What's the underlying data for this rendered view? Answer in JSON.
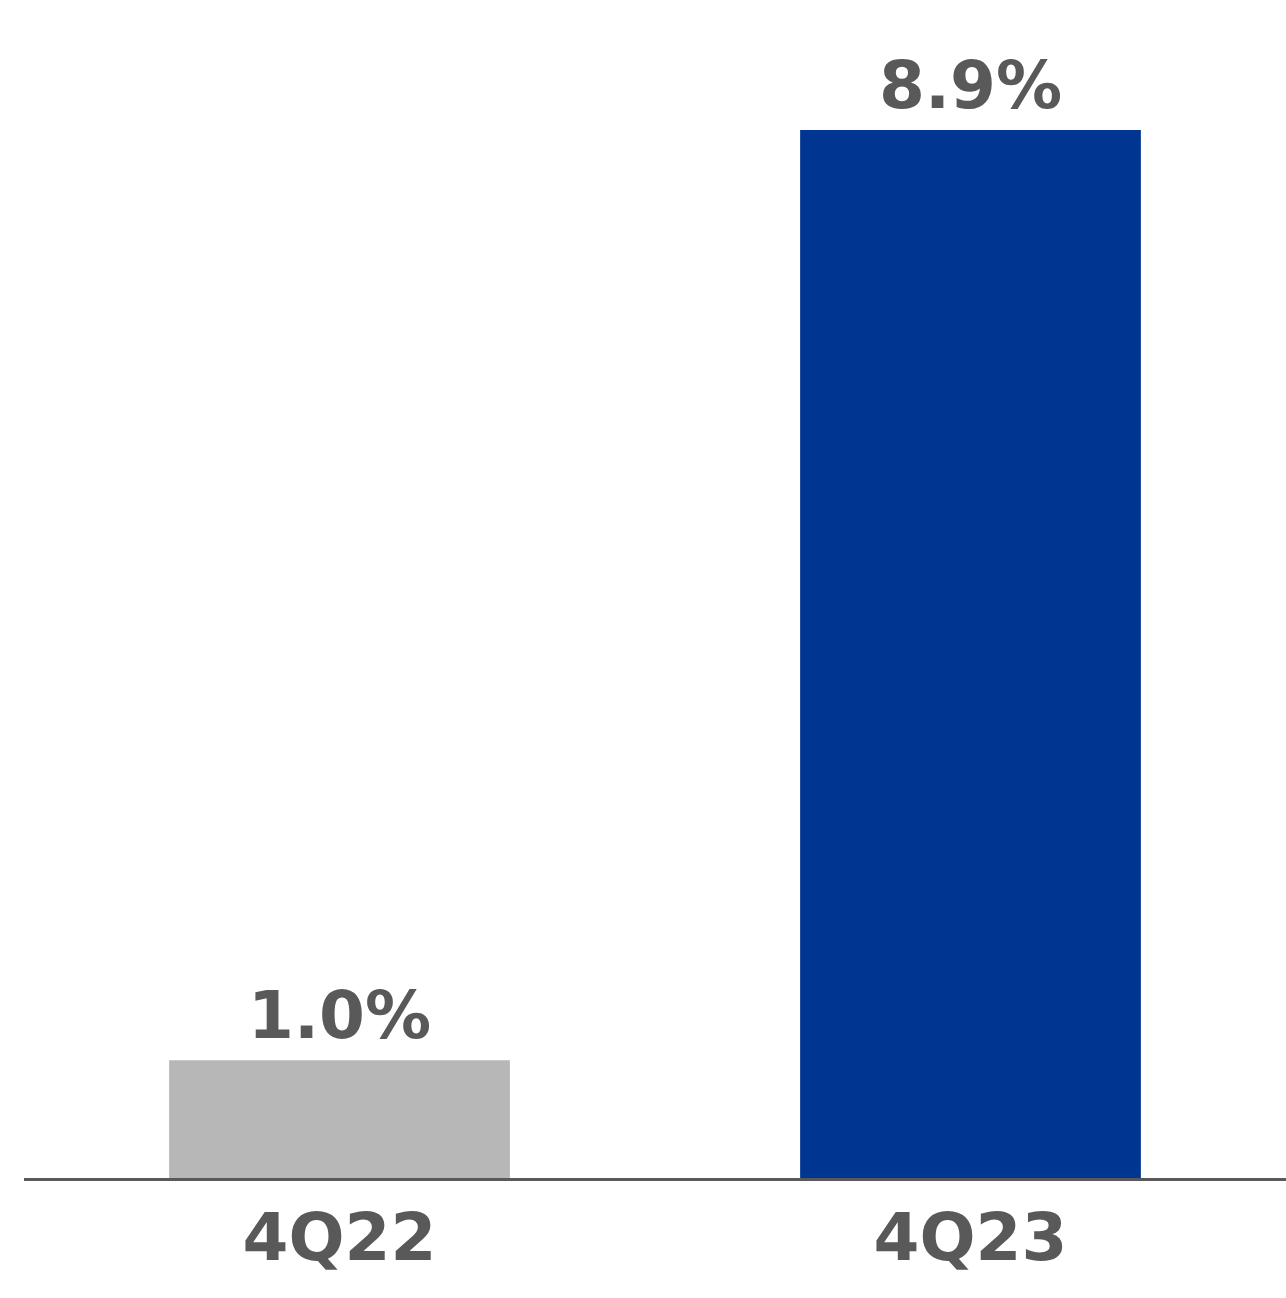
{
  "chart_data": {
    "type": "bar",
    "categories": [
      "4Q22",
      "4Q23"
    ],
    "values": [
      1.0,
      8.9
    ],
    "colors": [
      "#b7b7b7",
      "#003591"
    ],
    "value_labels": [
      "1.0%",
      "8.9%"
    ]
  }
}
